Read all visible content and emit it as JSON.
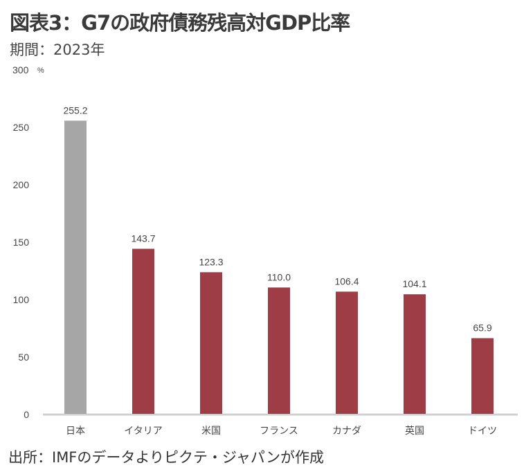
{
  "title": "図表3：G7の政府債務残高対GDP比率",
  "subtitle": "期間：2023年",
  "source": "出所：IMFのデータよりピクテ・ジャパンが作成",
  "chart_data": {
    "type": "bar",
    "title": "図表3：G7の政府債務残高対GDP比率",
    "xlabel": "",
    "ylabel": "%",
    "unit_label": "%",
    "ylim": [
      0,
      300
    ],
    "yticks": [
      0,
      50,
      100,
      150,
      200,
      250,
      300
    ],
    "grid": false,
    "categories": [
      "日本",
      "イタリア",
      "米国",
      "フランス",
      "カナダ",
      "英国",
      "ドイツ"
    ],
    "values": [
      255.2,
      143.7,
      123.3,
      110.0,
      106.4,
      104.1,
      65.9
    ],
    "value_labels": [
      "255.2",
      "143.7",
      "123.3",
      "110.0",
      "106.4",
      "104.1",
      "65.9"
    ],
    "colors": [
      "#a6a6a6",
      "#9e3d45",
      "#9e3d45",
      "#9e3d45",
      "#9e3d45",
      "#9e3d45",
      "#9e3d45"
    ]
  }
}
